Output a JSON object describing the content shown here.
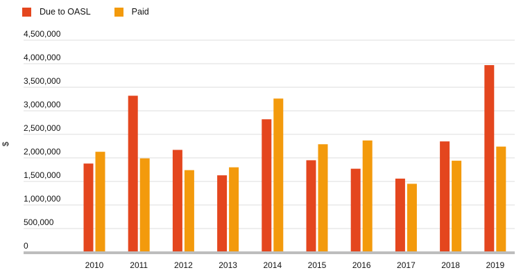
{
  "chart_data": {
    "type": "bar",
    "title": "",
    "xlabel": "",
    "ylabel": "$",
    "ylim": [
      0,
      4500000
    ],
    "yticks": [
      0,
      500000,
      1000000,
      1500000,
      2000000,
      2500000,
      3000000,
      3500000,
      4000000,
      4500000
    ],
    "ytick_labels": [
      "0",
      "500,000",
      "1,000,000",
      "1,500,000",
      "2,000,000",
      "2,500,000",
      "3,000,000",
      "3,500,000",
      "4,000,000",
      "4,500,000"
    ],
    "grid": true,
    "legend_position": "top-left",
    "categories": [
      "2010",
      "2011",
      "2012",
      "2013",
      "2014",
      "2015",
      "2016",
      "2017",
      "2018",
      "2019"
    ],
    "series": [
      {
        "name": "Due to OASL",
        "color": "#e4461e",
        "values": [
          1880000,
          3320000,
          2170000,
          1630000,
          2820000,
          1950000,
          1770000,
          1560000,
          2350000,
          3970000
        ]
      },
      {
        "name": "Paid",
        "color": "#f39a0c",
        "values": [
          2130000,
          1990000,
          1740000,
          1800000,
          3260000,
          2290000,
          2370000,
          1450000,
          1940000,
          2240000
        ]
      }
    ]
  }
}
